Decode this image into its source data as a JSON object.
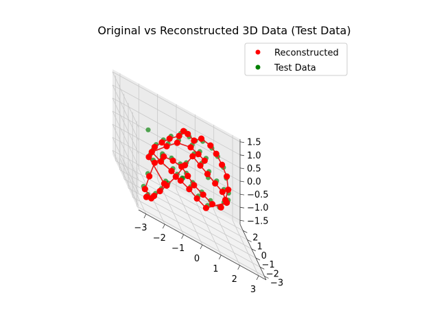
{
  "chart_data": {
    "type": "scatter",
    "projection": "3d",
    "title": "Original vs Reconstructed 3D Data (Test Data)",
    "legend_position": "top-right",
    "grid": true,
    "axes": {
      "x": {
        "range": [
          -3.4,
          3.4
        ],
        "ticks": [
          -3,
          -2,
          -1,
          0,
          1,
          2,
          3
        ]
      },
      "y": {
        "range": [
          -3.4,
          2.7
        ],
        "ticks": [
          -3,
          -2,
          -1,
          0,
          1,
          2
        ]
      },
      "z": {
        "range": [
          -1.65,
          1.6
        ],
        "ticks": [
          -1.5,
          -1.0,
          -0.5,
          0.0,
          0.5,
          1.0,
          1.5
        ]
      }
    },
    "series": [
      {
        "name": "Reconstructed",
        "color": "#ff0000",
        "marker": "circle",
        "connected": true,
        "line_color": "#e31a1a",
        "points": [
          [
            -2.8,
            -2.6,
            -1.2
          ],
          [
            -2.3,
            -2.2,
            -1.1
          ],
          [
            -1.9,
            -1.8,
            -0.9
          ],
          [
            -1.6,
            -1.5,
            -0.6
          ],
          [
            -2.6,
            -2.3,
            0.3
          ],
          [
            -2.2,
            -1.9,
            0.7
          ],
          [
            -1.7,
            -1.4,
            0.9
          ],
          [
            -1.2,
            -1.0,
            1.1
          ],
          [
            -0.6,
            -0.6,
            1.3
          ],
          [
            -0.3,
            -0.3,
            1.5
          ],
          [
            0.0,
            0.0,
            1.4
          ],
          [
            0.4,
            0.3,
            1.2
          ],
          [
            0.9,
            0.8,
            1.3
          ],
          [
            1.5,
            1.3,
            1.1
          ],
          [
            1.9,
            1.7,
            0.8
          ],
          [
            2.3,
            2.1,
            0.4
          ],
          [
            2.6,
            2.3,
            0.0
          ],
          [
            2.7,
            2.4,
            -0.5
          ],
          [
            2.5,
            2.2,
            -0.9
          ],
          [
            2.2,
            1.9,
            -1.2
          ],
          [
            1.6,
            1.3,
            -1.1
          ],
          [
            1.0,
            0.8,
            -0.8
          ],
          [
            0.4,
            0.3,
            -0.5
          ],
          [
            0.0,
            0.0,
            -0.2
          ],
          [
            -0.4,
            -0.3,
            0.1
          ],
          [
            -1.0,
            -0.9,
            0.3
          ],
          [
            -1.6,
            -1.4,
            0.4
          ],
          [
            -2.2,
            -1.9,
            0.1
          ],
          [
            -2.6,
            -2.4,
            -0.4
          ],
          [
            -2.9,
            -2.7,
            -0.9
          ],
          [
            -2.4,
            -2.0,
            -1.3
          ],
          [
            -1.4,
            -1.2,
            -0.7
          ],
          [
            -0.8,
            -0.7,
            -0.3
          ],
          [
            -0.2,
            -0.2,
            0.2
          ],
          [
            0.3,
            0.2,
            0.6
          ],
          [
            0.8,
            0.6,
            0.3
          ],
          [
            1.3,
            1.1,
            0.0
          ],
          [
            1.8,
            1.5,
            -0.3
          ],
          [
            2.3,
            2.0,
            -0.6
          ],
          [
            2.6,
            2.3,
            -1.0
          ],
          [
            1.2,
            1.0,
            -1.3
          ],
          [
            0.6,
            0.5,
            -1.0
          ],
          [
            0.1,
            0.1,
            -0.7
          ],
          [
            -0.5,
            -0.5,
            -0.4
          ],
          [
            -1.1,
            -1.0,
            -0.1
          ],
          [
            -1.8,
            -1.6,
            0.2
          ],
          [
            -2.4,
            -2.1,
            0.5
          ],
          [
            -1.4,
            -1.2,
            0.8
          ],
          [
            -0.7,
            -0.6,
            1.0
          ],
          [
            0.2,
            0.2,
            0.9
          ],
          [
            0.7,
            0.6,
            0.7
          ],
          [
            1.1,
            0.9,
            0.5
          ]
        ]
      },
      {
        "name": "Test Data",
        "color": "#008000",
        "marker": "circle",
        "connected": false,
        "points": [
          [
            -2.7,
            -2.5,
            -1.1
          ],
          [
            -2.2,
            -2.1,
            -1.0
          ],
          [
            -1.8,
            -1.7,
            -0.8
          ],
          [
            -1.5,
            -1.4,
            -0.5
          ],
          [
            -2.5,
            -2.2,
            0.4
          ],
          [
            -2.1,
            -1.8,
            0.8
          ],
          [
            -1.6,
            -1.3,
            1.0
          ],
          [
            -1.1,
            -0.9,
            1.2
          ],
          [
            -0.5,
            -0.5,
            1.4
          ],
          [
            -0.2,
            -0.2,
            1.5
          ],
          [
            0.1,
            0.1,
            1.3
          ],
          [
            0.5,
            0.4,
            1.2
          ],
          [
            1.0,
            0.9,
            1.2
          ],
          [
            1.6,
            1.4,
            1.0
          ],
          [
            2.0,
            1.8,
            0.7
          ],
          [
            2.4,
            2.2,
            0.3
          ],
          [
            2.6,
            2.4,
            -0.1
          ],
          [
            2.7,
            2.3,
            -0.6
          ],
          [
            2.4,
            2.1,
            -1.0
          ],
          [
            2.1,
            1.8,
            -1.2
          ],
          [
            1.5,
            1.3,
            -1.0
          ],
          [
            0.9,
            0.7,
            -0.7
          ],
          [
            0.3,
            0.2,
            -0.4
          ],
          [
            -0.1,
            -0.1,
            -0.1
          ],
          [
            -0.5,
            -0.4,
            0.2
          ],
          [
            -1.1,
            -1.0,
            0.4
          ],
          [
            -1.7,
            -1.5,
            0.5
          ],
          [
            -2.3,
            -2.0,
            0.2
          ],
          [
            -2.7,
            -2.5,
            -0.3
          ],
          [
            -3.0,
            -2.8,
            -0.8
          ],
          [
            -2.3,
            -2.0,
            -1.2
          ],
          [
            -1.3,
            -1.1,
            -0.6
          ],
          [
            -0.7,
            -0.6,
            -0.2
          ],
          [
            -0.1,
            -0.1,
            0.3
          ],
          [
            0.4,
            0.3,
            0.7
          ],
          [
            0.9,
            0.7,
            0.4
          ],
          [
            1.4,
            1.2,
            0.1
          ],
          [
            1.9,
            1.6,
            -0.2
          ],
          [
            2.4,
            2.1,
            -0.5
          ],
          [
            2.7,
            2.4,
            -0.9
          ],
          [
            1.3,
            1.1,
            -1.2
          ],
          [
            0.7,
            0.6,
            -0.9
          ],
          [
            0.2,
            0.2,
            -0.6
          ],
          [
            -0.4,
            -0.4,
            -0.3
          ],
          [
            -1.0,
            -0.9,
            0.0
          ],
          [
            -1.7,
            -1.5,
            0.3
          ],
          [
            -2.3,
            -2.0,
            0.6
          ],
          [
            -1.3,
            -1.1,
            0.9
          ],
          [
            -0.6,
            -0.5,
            1.1
          ],
          [
            0.3,
            0.3,
            1.0
          ],
          [
            0.8,
            0.7,
            0.8
          ],
          [
            1.2,
            1.0,
            0.6
          ],
          [
            -2.0,
            0.5,
            0.6
          ],
          [
            -1.0,
            1.6,
            -0.4
          ],
          [
            0.2,
            2.0,
            -0.9
          ],
          [
            1.5,
            1.8,
            -0.3
          ]
        ]
      }
    ]
  }
}
